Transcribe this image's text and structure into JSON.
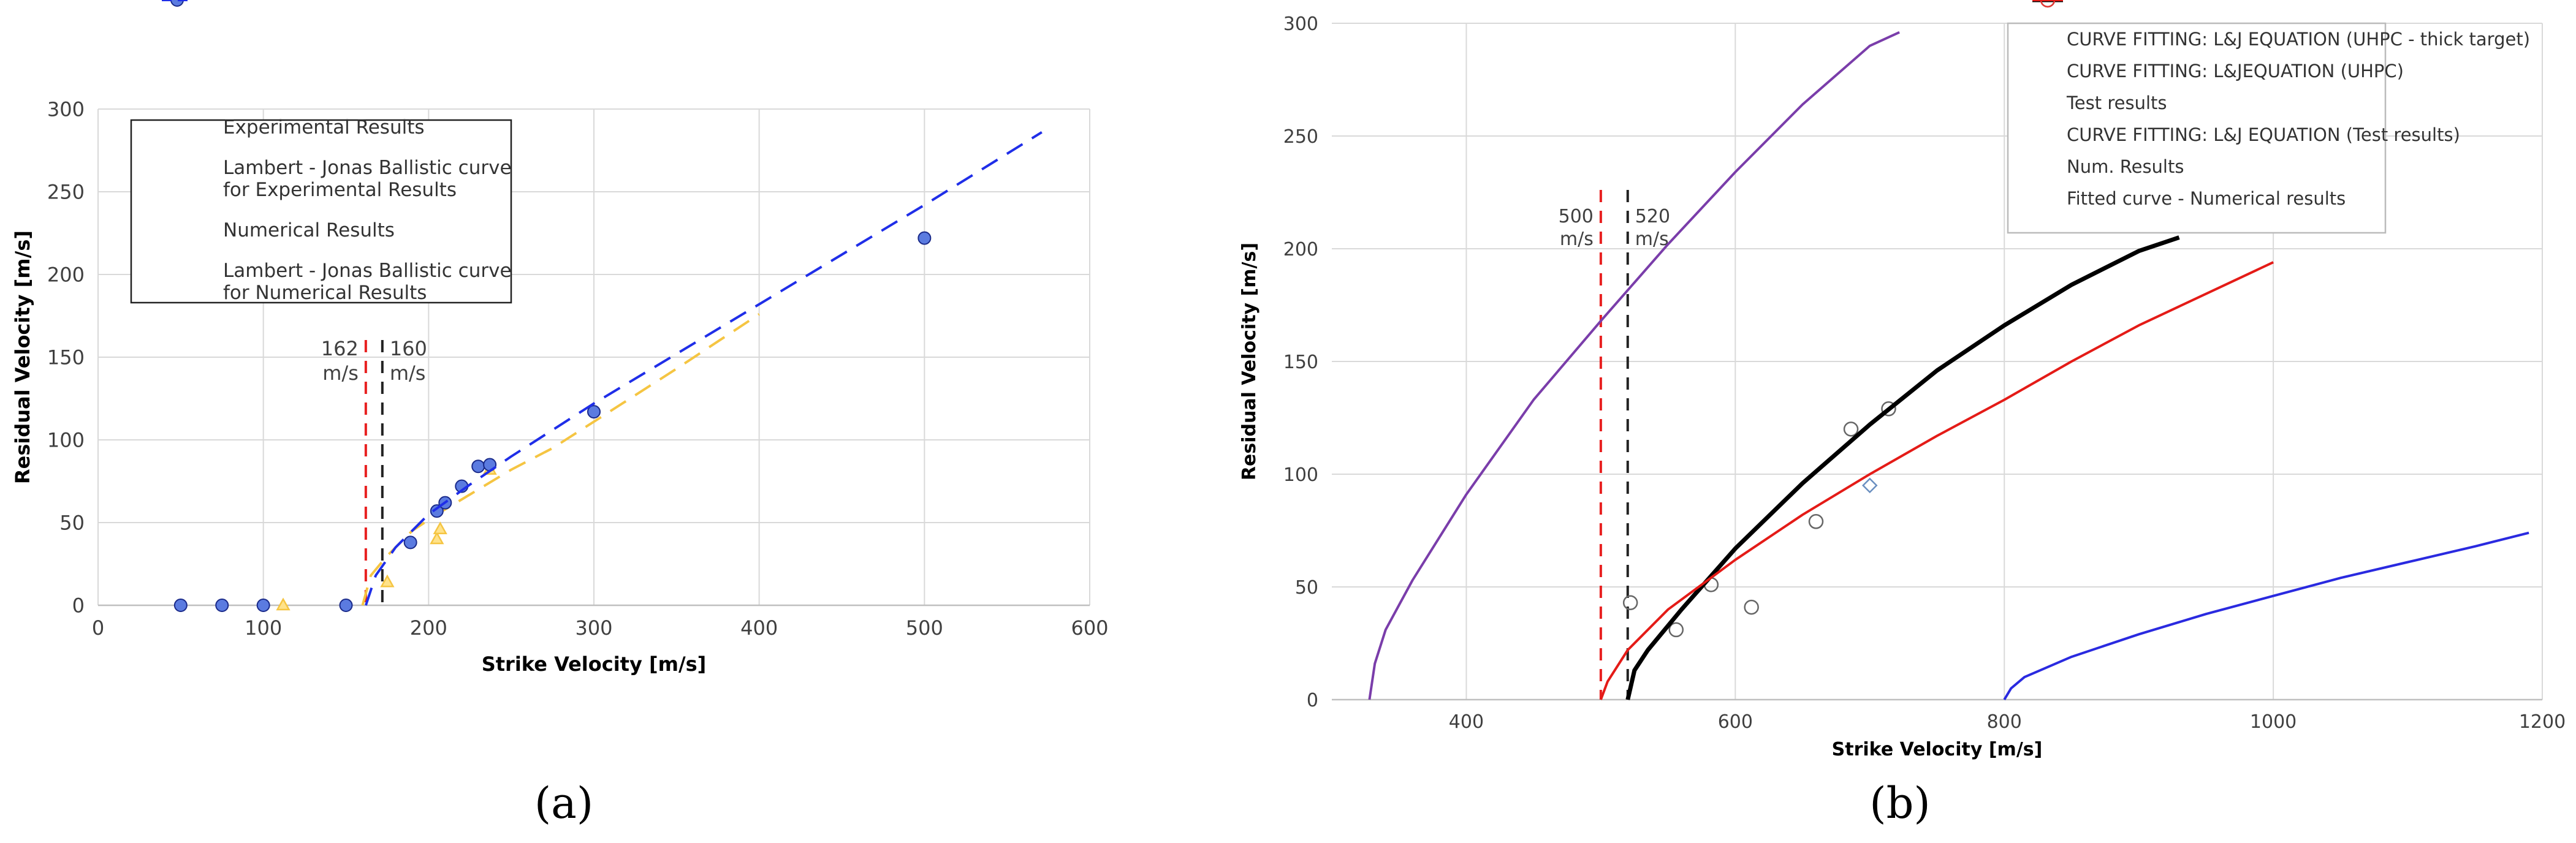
{
  "chart_data": [
    {
      "id": "a",
      "type": "scatter",
      "panel_label": "(a)",
      "xlabel": "Strike Velocity [m/s]",
      "ylabel": "Residual Velocity [m/s]",
      "xlim": [
        0,
        600
      ],
      "ylim": [
        0,
        300
      ],
      "xticks": [
        "0",
        "100",
        "200",
        "300",
        "400",
        "500",
        "600"
      ],
      "yticks": [
        "0",
        "50",
        "100",
        "150",
        "200",
        "250",
        "300"
      ],
      "grid": true,
      "legend_position": "top-left",
      "series": [
        {
          "name": "Experimental Results",
          "kind": "markers",
          "marker": "triangle",
          "color": "#F5C542",
          "points": [
            [
              112,
              0
            ],
            [
              175,
              14
            ],
            [
              205,
              40
            ],
            [
              207,
              46
            ],
            [
              237,
              82
            ]
          ]
        },
        {
          "name": "Lambert - Jonas Ballistic curve for Experimental Results",
          "legend_lines": [
            "Lambert - Jonas Ballistic curve",
            "for Experimental Results"
          ],
          "kind": "line",
          "dash": "dashed",
          "color": "#F5C542",
          "points": [
            [
              160,
              0
            ],
            [
              165,
              18
            ],
            [
              175,
              30
            ],
            [
              190,
              45
            ],
            [
              205,
              55
            ],
            [
              225,
              67
            ],
            [
              250,
              82
            ],
            [
              275,
              95
            ],
            [
              300,
              111
            ],
            [
              350,
              143
            ],
            [
              400,
              176
            ]
          ]
        },
        {
          "name": "Numerical Results",
          "kind": "markers",
          "marker": "circle",
          "color": "#5B7BE0",
          "points": [
            [
              50,
              0
            ],
            [
              75,
              0
            ],
            [
              100,
              0
            ],
            [
              150,
              0
            ],
            [
              189,
              38
            ],
            [
              205,
              57
            ],
            [
              210,
              62
            ],
            [
              220,
              72
            ],
            [
              230,
              84
            ],
            [
              237,
              85
            ],
            [
              300,
              117
            ],
            [
              500,
              222
            ]
          ]
        },
        {
          "name": "Lambert - Jonas Ballistic curve for Numerical Results",
          "legend_lines": [
            "Lambert - Jonas Ballistic curve",
            "for Numerical Results"
          ],
          "kind": "line",
          "dash": "dashed",
          "color": "#1F2EE8",
          "points": [
            [
              162,
              0
            ],
            [
              168,
              18
            ],
            [
              180,
              35
            ],
            [
              200,
              55
            ],
            [
              225,
              73
            ],
            [
              250,
              90
            ],
            [
              300,
              122
            ],
            [
              350,
              152
            ],
            [
              400,
              182
            ],
            [
              450,
              212
            ],
            [
              500,
              242
            ],
            [
              571,
              286
            ]
          ]
        }
      ],
      "annotations": [
        {
          "lines": [
            "162",
            "m/s"
          ],
          "x": 162,
          "color": "#E82020"
        },
        {
          "lines": [
            "160",
            "m/s"
          ],
          "x": 172,
          "color": "#222222"
        }
      ]
    },
    {
      "id": "b",
      "type": "line",
      "panel_label": "(b)",
      "xlabel": "Strike Velocity [m/s]",
      "ylabel": "Residual Velocity [m/s]",
      "xlim": [
        300,
        1200
      ],
      "ylim": [
        0,
        300
      ],
      "xticks": [
        "400",
        "600",
        "800",
        "1000",
        "1200"
      ],
      "yticks": [
        "0",
        "50",
        "100",
        "150",
        "200",
        "250",
        "300"
      ],
      "grid": true,
      "legend_position": "top-right",
      "series": [
        {
          "name": "CURVE FITTING: L&J EQUATION (UHPC - thick target)",
          "kind": "line",
          "color": "#2A2AE0",
          "points": [
            [
              800,
              0
            ],
            [
              805,
              5
            ],
            [
              815,
              10
            ],
            [
              850,
              19
            ],
            [
              900,
              29
            ],
            [
              950,
              38
            ],
            [
              1000,
              46
            ],
            [
              1050,
              54
            ],
            [
              1100,
              61
            ],
            [
              1150,
              68
            ],
            [
              1190,
              74
            ]
          ]
        },
        {
          "name": "CURVE FITTING: L&JEQUATION (UHPC)",
          "kind": "line",
          "color": "#7A3DAA",
          "points": [
            [
              328,
              0
            ],
            [
              332,
              16
            ],
            [
              340,
              31
            ],
            [
              360,
              53
            ],
            [
              400,
              91
            ],
            [
              450,
              133
            ],
            [
              500,
              168
            ],
            [
              550,
              202
            ],
            [
              600,
              234
            ],
            [
              650,
              264
            ],
            [
              700,
              290
            ],
            [
              722,
              296
            ]
          ]
        },
        {
          "name": "Test results",
          "kind": "markers",
          "marker": "circle-open",
          "color": "#666666",
          "points": [
            [
              522,
              43
            ],
            [
              556,
              31
            ],
            [
              582,
              51
            ],
            [
              612,
              41
            ],
            [
              660,
              79
            ],
            [
              686,
              120
            ],
            [
              714,
              129
            ]
          ]
        },
        {
          "name": "CURVE FITTING: L&J EQUATION (Test results)",
          "kind": "line",
          "color": "#000000",
          "width": "thick",
          "points": [
            [
              520,
              0
            ],
            [
              525,
              13
            ],
            [
              535,
              22
            ],
            [
              560,
              40
            ],
            [
              600,
              67
            ],
            [
              650,
              96
            ],
            [
              700,
              122
            ],
            [
              750,
              146
            ],
            [
              800,
              166
            ],
            [
              850,
              184
            ],
            [
              900,
              199
            ],
            [
              930,
              205
            ]
          ]
        },
        {
          "name": "Num. Results",
          "kind": "markers",
          "marker": "circle-open",
          "color": "#E53935",
          "points": []
        },
        {
          "name": "Fitted curve - Numerical results",
          "kind": "line",
          "color": "#E41B17",
          "points": [
            [
              500,
              0
            ],
            [
              505,
              8
            ],
            [
              520,
              22
            ],
            [
              550,
              40
            ],
            [
              600,
              62
            ],
            [
              650,
              82
            ],
            [
              700,
              100
            ],
            [
              750,
              117
            ],
            [
              800,
              133
            ],
            [
              850,
              150
            ],
            [
              900,
              166
            ],
            [
              950,
              180
            ],
            [
              1000,
              194
            ]
          ]
        },
        {
          "name": "",
          "kind": "markers",
          "marker": "diamond-open",
          "color": "#6A8FC0",
          "points": [
            [
              700,
              95
            ]
          ]
        }
      ],
      "annotations": [
        {
          "lines": [
            "500",
            "m/s"
          ],
          "x": 500,
          "color": "#E82020"
        },
        {
          "lines": [
            "520",
            "m/s"
          ],
          "x": 520,
          "color": "#222222"
        }
      ]
    }
  ]
}
